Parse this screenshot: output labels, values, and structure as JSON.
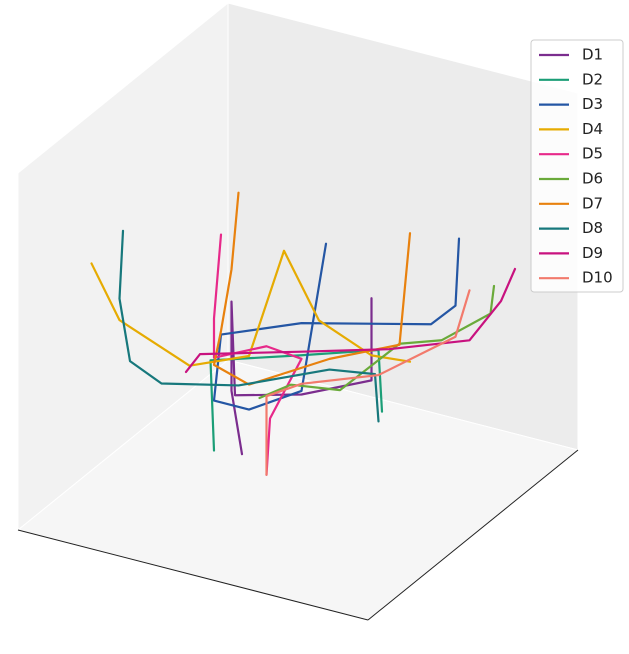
{
  "chart_data": {
    "type": "line3d",
    "xlim": [
      0,
      1
    ],
    "ylim": [
      0,
      1
    ],
    "zlim": [
      0,
      1
    ],
    "legend": "upper right",
    "series": [
      {
        "name": "D1",
        "color": "#7b2d8e",
        "x": [
          0.5,
          0.5,
          0.5,
          0.5,
          0.5,
          0.5,
          0.5
        ],
        "y": [
          0.71,
          0.71,
          0.51,
          0.32,
          0.31,
          0.31,
          0.34
        ],
        "z": [
          0.59,
          0.36,
          0.27,
          0.22,
          0.48,
          0.23,
          0.06
        ]
      },
      {
        "name": "D2",
        "color": "#1b9e77",
        "x": [
          0.5,
          0.5,
          0.5,
          0.5,
          0.5
        ],
        "y": [
          0.26,
          0.25,
          0.51,
          0.73,
          0.74
        ],
        "z": [
          0.05,
          0.3,
          0.38,
          0.45,
          0.28
        ]
      },
      {
        "name": "D3",
        "color": "#2456a4",
        "x": [
          0.5,
          0.5,
          0.5,
          0.5,
          0.5,
          0.5,
          0.5,
          0.5,
          0.5
        ],
        "y": [
          0.96,
          0.95,
          0.88,
          0.51,
          0.28,
          0.26,
          0.36,
          0.51,
          0.58
        ],
        "z": [
          0.82,
          0.63,
          0.56,
          0.47,
          0.38,
          0.19,
          0.19,
          0.28,
          0.71
        ]
      },
      {
        "name": "D4",
        "color": "#e6ab02",
        "x": [
          0.65,
          0.6,
          0.5,
          0.5,
          0.5,
          0.5,
          0.5,
          0.5
        ],
        "y": [
          0,
          0.05,
          0.19,
          0.36,
          0.46,
          0.56,
          0.71,
          0.82
        ],
        "z": [
          0.58,
          0.41,
          0.27,
          0.34,
          0.66,
          0.49,
          0.43,
          0.44
        ]
      },
      {
        "name": "D5",
        "color": "#e7298a",
        "x": [
          0.5,
          0.5,
          0.5,
          0.5,
          0.5,
          0.5,
          0.5
        ],
        "y": [
          0.28,
          0.26,
          0.26,
          0.41,
          0.51,
          0.42,
          0.41
        ],
        "z": [
          0.66,
          0.42,
          0.31,
          0.38,
          0.37,
          0.18,
          0.02
        ]
      },
      {
        "name": "D6",
        "color": "#6aaa3a",
        "x": [
          0.4,
          0.4,
          0.4,
          0.4,
          0.5,
          0.5,
          0.5
        ],
        "y": [
          1.0,
          0.99,
          0.85,
          0.73,
          0.62,
          0.48,
          0.39
        ],
        "z": [
          0.65,
          0.57,
          0.46,
          0.42,
          0.31,
          0.29,
          0.23
        ]
      },
      {
        "name": "D7",
        "color": "#e8810e",
        "x": [
          0.5,
          0.5,
          0.5,
          0.5,
          0.5,
          0.5,
          0.5,
          0.5
        ],
        "y": [
          0.33,
          0.31,
          0.28,
          0.26,
          0.36,
          0.59,
          0.79,
          0.82
        ],
        "z": [
          0.79,
          0.57,
          0.39,
          0.29,
          0.26,
          0.39,
          0.48,
          0.8
        ]
      },
      {
        "name": "D8",
        "color": "#17787c",
        "x": [
          0.5,
          0.6,
          0.5,
          0.5,
          0.5,
          0.5,
          0.5,
          0.5
        ],
        "y": [
          0,
          0.05,
          0.02,
          0.11,
          0.33,
          0.59,
          0.72,
          0.73
        ],
        "z": [
          0.6,
          0.47,
          0.24,
          0.2,
          0.25,
          0.36,
          0.38,
          0.25
        ]
      },
      {
        "name": "D9",
        "color": "#c8127f",
        "x": [
          0.3,
          0.3,
          0.4,
          0.5,
          0.5,
          0.5,
          0.5
        ],
        "y": [
          1.0,
          0.96,
          0.93,
          0.76,
          0.51,
          0.22,
          0.18
        ],
        "z": [
          0.65,
          0.55,
          0.48,
          0.46,
          0.39,
          0.31,
          0.25
        ]
      },
      {
        "name": "D10",
        "color": "#f27a6c",
        "x": [
          0.4,
          0.4,
          0.5,
          0.5,
          0.5,
          0.5
        ],
        "y": [
          0.93,
          0.89,
          0.73,
          0.51,
          0.41,
          0.41
        ],
        "z": [
          0.62,
          0.48,
          0.38,
          0.3,
          0.24,
          0.02
        ]
      }
    ]
  }
}
